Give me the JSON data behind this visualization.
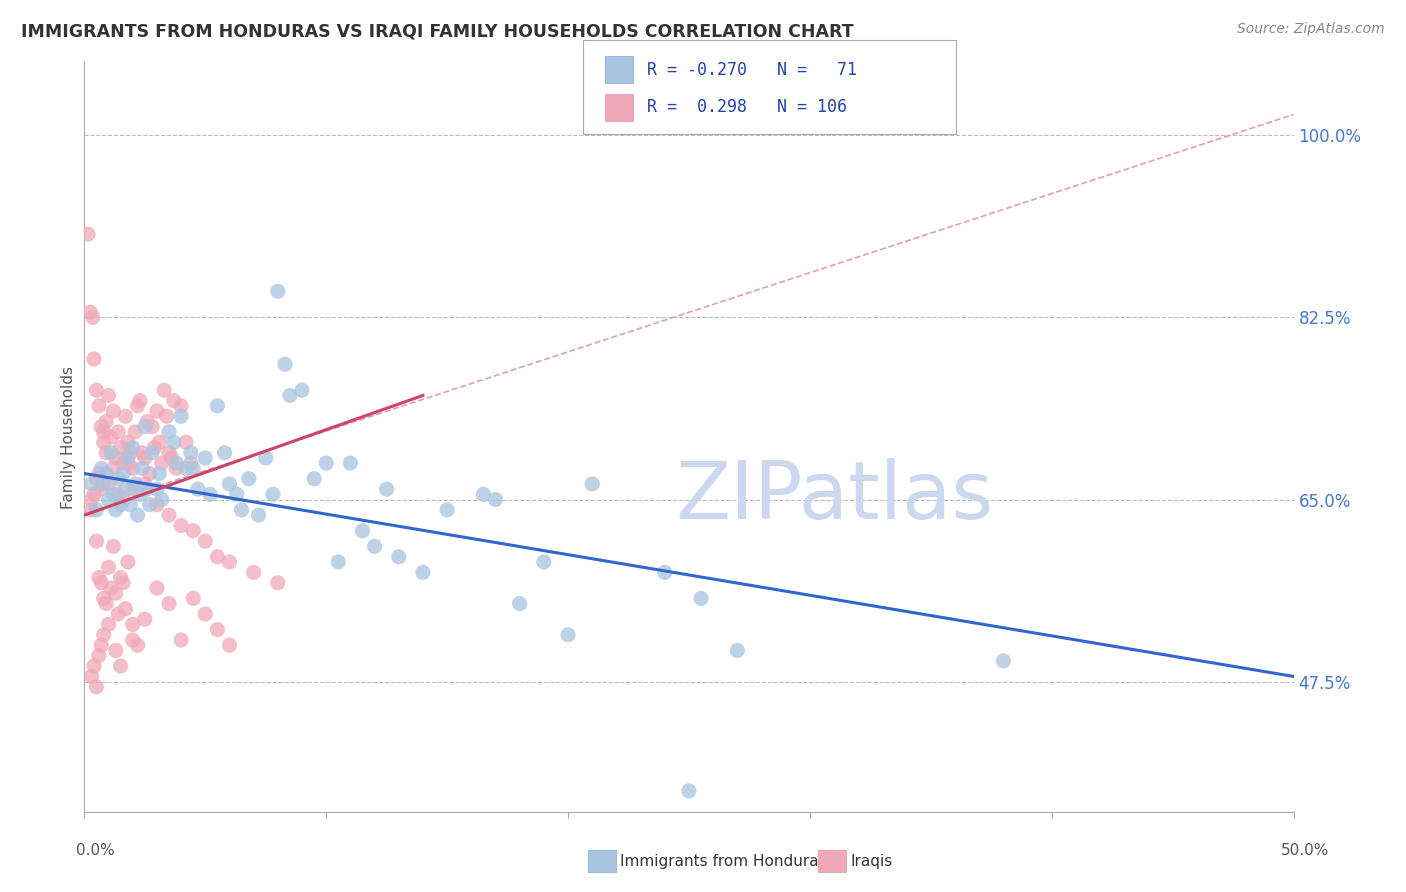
{
  "title": "IMMIGRANTS FROM HONDURAS VS IRAQI FAMILY HOUSEHOLDS CORRELATION CHART",
  "source": "Source: ZipAtlas.com",
  "ylabel": "Family Households",
  "yaxis_values": [
    47.5,
    65.0,
    82.5,
    100.0
  ],
  "xlim": [
    0.0,
    50.0
  ],
  "ylim": [
    35.0,
    107.0
  ],
  "color_blue": "#a8c4e0",
  "color_pink": "#f0a8b8",
  "color_blue_line": "#3366cc",
  "color_pink_line": "#cc4466",
  "color_dashed": "#e0a0b0",
  "watermark_color": "#ccd8ee",
  "honduras_scatter": [
    [
      0.3,
      66.5
    ],
    [
      0.5,
      64.0
    ],
    [
      0.7,
      68.0
    ],
    [
      0.8,
      66.5
    ],
    [
      0.9,
      67.5
    ],
    [
      1.0,
      65.0
    ],
    [
      1.1,
      69.5
    ],
    [
      1.2,
      65.5
    ],
    [
      1.3,
      64.0
    ],
    [
      1.4,
      67.0
    ],
    [
      1.5,
      64.5
    ],
    [
      1.6,
      67.5
    ],
    [
      1.7,
      66.0
    ],
    [
      1.8,
      69.0
    ],
    [
      1.9,
      64.5
    ],
    [
      2.0,
      70.0
    ],
    [
      2.1,
      66.5
    ],
    [
      2.2,
      63.5
    ],
    [
      2.3,
      65.5
    ],
    [
      2.4,
      68.0
    ],
    [
      2.5,
      72.0
    ],
    [
      2.6,
      66.0
    ],
    [
      2.7,
      64.5
    ],
    [
      2.8,
      69.5
    ],
    [
      3.0,
      66.0
    ],
    [
      3.1,
      67.5
    ],
    [
      3.2,
      65.0
    ],
    [
      3.5,
      71.5
    ],
    [
      3.7,
      70.5
    ],
    [
      3.8,
      68.5
    ],
    [
      4.0,
      73.0
    ],
    [
      4.2,
      68.0
    ],
    [
      4.4,
      69.5
    ],
    [
      4.5,
      68.0
    ],
    [
      4.7,
      66.0
    ],
    [
      5.0,
      69.0
    ],
    [
      5.2,
      65.5
    ],
    [
      5.5,
      74.0
    ],
    [
      5.8,
      69.5
    ],
    [
      6.0,
      66.5
    ],
    [
      6.3,
      65.5
    ],
    [
      6.5,
      64.0
    ],
    [
      6.8,
      67.0
    ],
    [
      7.2,
      63.5
    ],
    [
      7.5,
      69.0
    ],
    [
      7.8,
      65.5
    ],
    [
      8.0,
      85.0
    ],
    [
      8.3,
      78.0
    ],
    [
      8.5,
      75.0
    ],
    [
      9.0,
      75.5
    ],
    [
      9.5,
      67.0
    ],
    [
      10.0,
      68.5
    ],
    [
      10.5,
      59.0
    ],
    [
      11.0,
      68.5
    ],
    [
      11.5,
      62.0
    ],
    [
      12.0,
      60.5
    ],
    [
      12.5,
      66.0
    ],
    [
      13.0,
      59.5
    ],
    [
      14.0,
      58.0
    ],
    [
      15.0,
      64.0
    ],
    [
      16.5,
      65.5
    ],
    [
      17.0,
      65.0
    ],
    [
      18.0,
      55.0
    ],
    [
      19.0,
      59.0
    ],
    [
      20.0,
      52.0
    ],
    [
      21.0,
      66.5
    ],
    [
      24.0,
      58.0
    ],
    [
      25.5,
      55.5
    ],
    [
      27.0,
      50.5
    ],
    [
      38.0,
      49.5
    ],
    [
      25.0,
      37.0
    ]
  ],
  "iraqis_scatter": [
    [
      0.15,
      90.5
    ],
    [
      0.25,
      83.0
    ],
    [
      0.35,
      82.5
    ],
    [
      0.4,
      78.5
    ],
    [
      0.5,
      75.5
    ],
    [
      0.6,
      74.0
    ],
    [
      0.7,
      72.0
    ],
    [
      0.8,
      71.5
    ],
    [
      0.9,
      72.5
    ],
    [
      1.0,
      75.0
    ],
    [
      1.1,
      71.0
    ],
    [
      1.2,
      73.5
    ],
    [
      1.3,
      69.0
    ],
    [
      1.4,
      71.5
    ],
    [
      1.5,
      70.0
    ],
    [
      1.6,
      68.5
    ],
    [
      1.7,
      73.0
    ],
    [
      1.8,
      70.5
    ],
    [
      1.9,
      69.5
    ],
    [
      2.0,
      68.0
    ],
    [
      2.1,
      71.5
    ],
    [
      2.2,
      74.0
    ],
    [
      2.3,
      74.5
    ],
    [
      2.4,
      69.5
    ],
    [
      2.5,
      69.0
    ],
    [
      2.6,
      72.5
    ],
    [
      2.7,
      67.5
    ],
    [
      2.8,
      72.0
    ],
    [
      2.9,
      70.0
    ],
    [
      3.0,
      73.5
    ],
    [
      3.1,
      70.5
    ],
    [
      3.2,
      68.5
    ],
    [
      3.3,
      75.5
    ],
    [
      3.4,
      73.0
    ],
    [
      3.5,
      69.5
    ],
    [
      3.6,
      69.0
    ],
    [
      3.7,
      74.5
    ],
    [
      3.8,
      68.0
    ],
    [
      4.0,
      74.0
    ],
    [
      4.2,
      70.5
    ],
    [
      4.4,
      68.5
    ],
    [
      0.3,
      65.0
    ],
    [
      0.4,
      65.5
    ],
    [
      0.5,
      67.0
    ],
    [
      0.6,
      67.5
    ],
    [
      0.7,
      66.0
    ],
    [
      0.8,
      70.5
    ],
    [
      0.9,
      69.5
    ],
    [
      1.0,
      66.5
    ],
    [
      1.2,
      68.0
    ],
    [
      1.4,
      65.5
    ],
    [
      1.6,
      65.0
    ],
    [
      1.8,
      68.5
    ],
    [
      2.0,
      66.0
    ],
    [
      2.5,
      66.5
    ],
    [
      3.0,
      64.5
    ],
    [
      3.5,
      63.5
    ],
    [
      4.0,
      62.5
    ],
    [
      4.5,
      62.0
    ],
    [
      5.0,
      61.0
    ],
    [
      5.5,
      59.5
    ],
    [
      6.0,
      59.0
    ],
    [
      7.0,
      58.0
    ],
    [
      8.0,
      57.0
    ],
    [
      0.3,
      64.0
    ],
    [
      0.5,
      61.0
    ],
    [
      0.6,
      57.5
    ],
    [
      0.7,
      57.0
    ],
    [
      0.8,
      55.5
    ],
    [
      0.9,
      55.0
    ],
    [
      1.0,
      58.5
    ],
    [
      1.1,
      56.5
    ],
    [
      1.2,
      60.5
    ],
    [
      1.3,
      56.0
    ],
    [
      1.4,
      54.0
    ],
    [
      1.5,
      57.5
    ],
    [
      1.6,
      57.0
    ],
    [
      1.7,
      54.5
    ],
    [
      1.8,
      59.0
    ],
    [
      2.0,
      53.0
    ],
    [
      2.2,
      51.0
    ],
    [
      2.5,
      53.5
    ],
    [
      3.0,
      56.5
    ],
    [
      3.5,
      55.0
    ],
    [
      4.0,
      51.5
    ],
    [
      4.5,
      55.5
    ],
    [
      5.0,
      54.0
    ],
    [
      5.5,
      52.5
    ],
    [
      6.0,
      51.0
    ],
    [
      0.3,
      48.0
    ],
    [
      0.4,
      49.0
    ],
    [
      0.5,
      47.0
    ],
    [
      0.6,
      50.0
    ],
    [
      0.7,
      51.0
    ],
    [
      0.8,
      52.0
    ],
    [
      1.0,
      53.0
    ],
    [
      1.3,
      50.5
    ],
    [
      1.5,
      49.0
    ],
    [
      2.0,
      51.5
    ]
  ],
  "blue_line_x": [
    0.0,
    50.0
  ],
  "blue_line_y": [
    67.5,
    48.0
  ],
  "pink_line_x": [
    0.0,
    14.0
  ],
  "pink_line_y": [
    63.5,
    75.0
  ],
  "dashed_line_x": [
    2.0,
    50.0
  ],
  "dashed_line_y": [
    65.5,
    102.0
  ]
}
